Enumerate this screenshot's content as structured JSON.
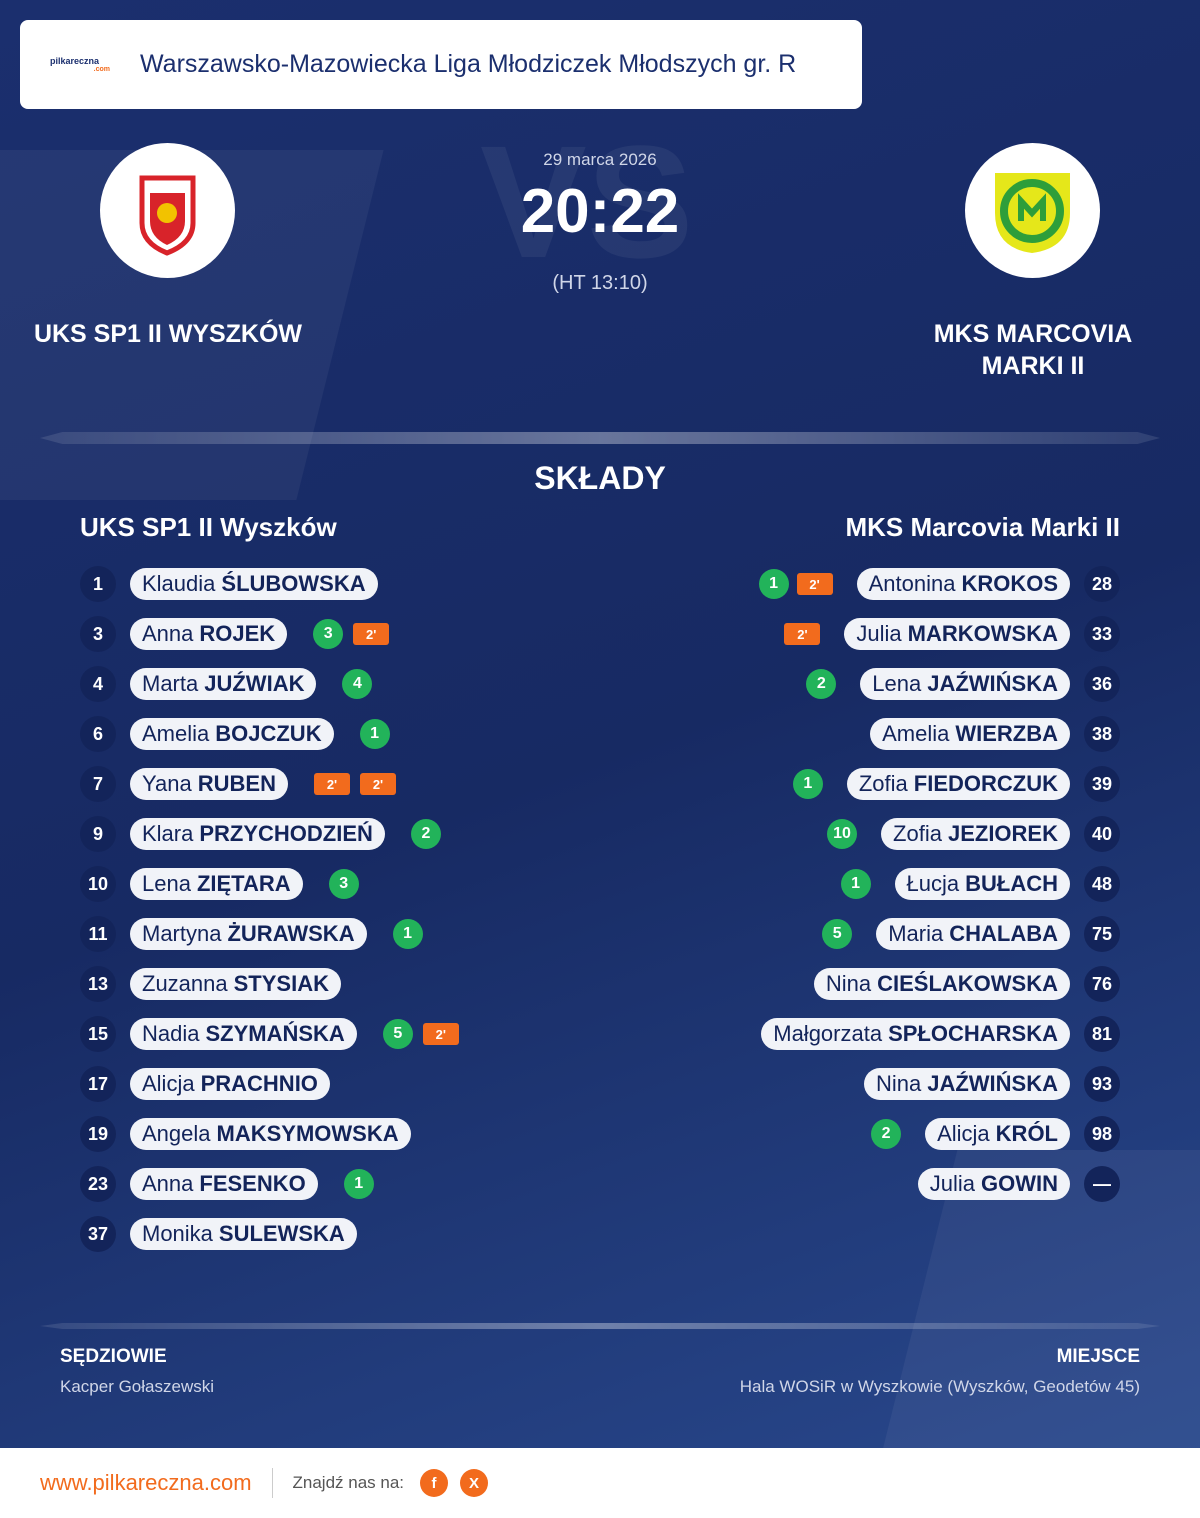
{
  "header": {
    "logo": "pilkareczna",
    "logo_suffix": ".com",
    "league": "Warszawsko-Mazowiecka Liga Młodziczek Młodszych gr. R"
  },
  "match": {
    "watermark": "VS",
    "date": "29 marca 2026",
    "score": "20:22",
    "halftime": "(HT 13:10)",
    "home_name": "UKS SP1 II WYSZKÓW",
    "away_name": "MKS MARCOVIA MARKI II"
  },
  "lineups": {
    "title": "SKŁADY",
    "home": {
      "team": "UKS SP1 II Wyszków",
      "players": [
        {
          "number": 1,
          "first": "Klaudia",
          "last": "ŚLUBOWSKA",
          "goals": null,
          "penalties": []
        },
        {
          "number": 3,
          "first": "Anna",
          "last": "ROJEK",
          "goals": 3,
          "penalties": [
            "2'"
          ]
        },
        {
          "number": 4,
          "first": "Marta",
          "last": "JUŹWIAK",
          "goals": 4,
          "penalties": []
        },
        {
          "number": 6,
          "first": "Amelia",
          "last": "BOJCZUK",
          "goals": 1,
          "penalties": []
        },
        {
          "number": 7,
          "first": "Yana",
          "last": "RUBEN",
          "goals": null,
          "penalties": [
            "2'",
            "2'"
          ]
        },
        {
          "number": 9,
          "first": "Klara",
          "last": "PRZYCHODZIEŃ",
          "goals": 2,
          "penalties": []
        },
        {
          "number": 10,
          "first": "Lena",
          "last": "ZIĘTARA",
          "goals": 3,
          "penalties": []
        },
        {
          "number": 11,
          "first": "Martyna",
          "last": "ŻURAWSKA",
          "goals": 1,
          "penalties": []
        },
        {
          "number": 13,
          "first": "Zuzanna",
          "last": "STYSIAK",
          "goals": null,
          "penalties": []
        },
        {
          "number": 15,
          "first": "Nadia",
          "last": "SZYMAŃSKA",
          "goals": 5,
          "penalties": [
            "2'"
          ]
        },
        {
          "number": 17,
          "first": "Alicja",
          "last": "PRACHNIO",
          "goals": null,
          "penalties": []
        },
        {
          "number": 19,
          "first": "Angela",
          "last": "MAKSYMOWSKA",
          "goals": null,
          "penalties": []
        },
        {
          "number": 23,
          "first": "Anna",
          "last": "FESENKO",
          "goals": 1,
          "penalties": []
        },
        {
          "number": 37,
          "first": "Monika",
          "last": "SULEWSKA",
          "goals": null,
          "penalties": []
        }
      ]
    },
    "away": {
      "team": "MKS Marcovia Marki II",
      "players": [
        {
          "number": 28,
          "first": "Antonina",
          "last": "KROKOS",
          "goals": 1,
          "penalties": [
            "2'"
          ]
        },
        {
          "number": 33,
          "first": "Julia",
          "last": "MARKOWSKA",
          "goals": null,
          "penalties": [
            "2'"
          ]
        },
        {
          "number": 36,
          "first": "Lena",
          "last": "JAŹWIŃSKA",
          "goals": 2,
          "penalties": []
        },
        {
          "number": 38,
          "first": "Amelia",
          "last": "WIERZBA",
          "goals": null,
          "penalties": []
        },
        {
          "number": 39,
          "first": "Zofia",
          "last": "FIEDORCZUK",
          "goals": 1,
          "penalties": []
        },
        {
          "number": 40,
          "first": "Zofia",
          "last": "JEZIOREK",
          "goals": 10,
          "penalties": []
        },
        {
          "number": 48,
          "first": "Łucja",
          "last": "BUŁACH",
          "goals": 1,
          "penalties": []
        },
        {
          "number": 75,
          "first": "Maria",
          "last": "CHALABA",
          "goals": 5,
          "penalties": []
        },
        {
          "number": 76,
          "first": "Nina",
          "last": "CIEŚLAKOWSKA",
          "goals": null,
          "penalties": []
        },
        {
          "number": 81,
          "first": "Małgorzata",
          "last": "SPŁOCHARSKA",
          "goals": null,
          "penalties": []
        },
        {
          "number": 93,
          "first": "Nina",
          "last": "JAŹWIŃSKA",
          "goals": null,
          "penalties": []
        },
        {
          "number": 98,
          "first": "Alicja",
          "last": "KRÓL",
          "goals": 2,
          "penalties": []
        },
        {
          "number": "—",
          "first": "Julia",
          "last": "GOWIN",
          "goals": null,
          "penalties": []
        }
      ]
    }
  },
  "officials": {
    "referees_title": "SĘDZIOWIE",
    "referees": "Kacper Gołaszewski",
    "venue_title": "MIEJSCE",
    "venue": "Hala WOSiR w Wyszkowie (Wyszków, Geodetów 45)"
  },
  "footer": {
    "url": "www.pilkareczna.com",
    "find_us": "Znajdź nas na:",
    "facebook": "f",
    "x": "X"
  }
}
